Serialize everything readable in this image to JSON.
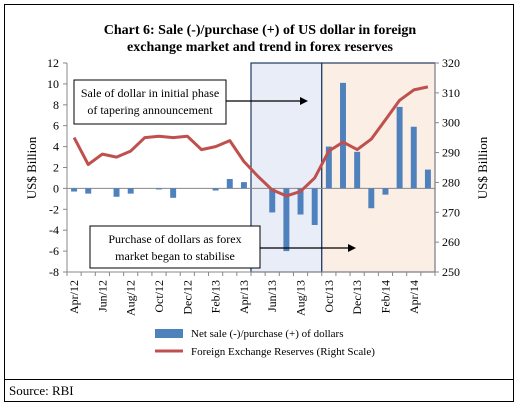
{
  "chart_data": {
    "type": "bar",
    "title_line1": "Chart 6: Sale (-)/purchase (+) of US dollar in foreign",
    "title_line2": "exchange market and trend in forex reserves",
    "ylabel_left": "US$ Billion",
    "ylabel_right": "US$ Billion",
    "ylim_left": [
      -8,
      12
    ],
    "yticks_left": [
      -8,
      -6,
      -4,
      -2,
      0,
      2,
      4,
      6,
      8,
      10,
      12
    ],
    "ylim_right": [
      250,
      320
    ],
    "yticks_right": [
      250,
      260,
      270,
      280,
      290,
      300,
      310,
      320
    ],
    "xtick_labels": [
      "Apr/12",
      "Jun/12",
      "Aug/12",
      "Oct/12",
      "Dec/12",
      "Feb/13",
      "Apr/13",
      "Jun/13",
      "Aug/13",
      "Oct/13",
      "Dec/13",
      "Feb/14",
      "Apr/14"
    ],
    "categories": [
      "Apr/12",
      "May/12",
      "Jun/12",
      "Jul/12",
      "Aug/12",
      "Sep/12",
      "Oct/12",
      "Nov/12",
      "Dec/12",
      "Jan/13",
      "Feb/13",
      "Mar/13",
      "Apr/13",
      "May/13",
      "Jun/13",
      "Jul/13",
      "Aug/13",
      "Sep/13",
      "Oct/13",
      "Nov/13",
      "Dec/13",
      "Jan/14",
      "Feb/14",
      "Mar/14",
      "Apr/14",
      "May/14"
    ],
    "series": [
      {
        "name": "Net sale (-)/purchase (+) of dollars",
        "kind": "bar",
        "axis": "left",
        "color": "#4F81BD",
        "values": [
          -0.3,
          -0.5,
          0,
          -0.8,
          -0.5,
          0,
          -0.1,
          -0.9,
          0,
          0,
          -0.2,
          0.9,
          0.6,
          0,
          -2.3,
          -6.0,
          -2.5,
          -3.5,
          4.0,
          10.1,
          3.5,
          -1.9,
          -0.6,
          7.8,
          5.9,
          1.8
        ]
      },
      {
        "name": "Foreign Exchange Reserves (Right Scale)",
        "kind": "line",
        "axis": "right",
        "color": "#C0504D",
        "values": [
          295.0,
          286.0,
          289.5,
          288.5,
          290.5,
          295.0,
          295.5,
          295.0,
          295.5,
          291.0,
          292.0,
          294.0,
          287.0,
          282.0,
          277.5,
          275.5,
          277.0,
          281.5,
          290.5,
          293.5,
          291.0,
          294.5,
          301.0,
          307.5,
          311.0,
          312.0
        ]
      }
    ],
    "annotations": [
      {
        "line1": "Sale of dollar in initial phase",
        "line2": "of tapering announcement"
      },
      {
        "line1": "Purchase of dollars as forex",
        "line2": "market began to stabilise"
      }
    ],
    "shaded_regions": [
      {
        "from": "May/13",
        "to": "Sep/13",
        "color": "#E8EDF7"
      },
      {
        "from": "Oct/13",
        "to": "May/14",
        "color": "#FBEEE4"
      }
    ]
  },
  "footer": {
    "source": "Source: RBI"
  }
}
